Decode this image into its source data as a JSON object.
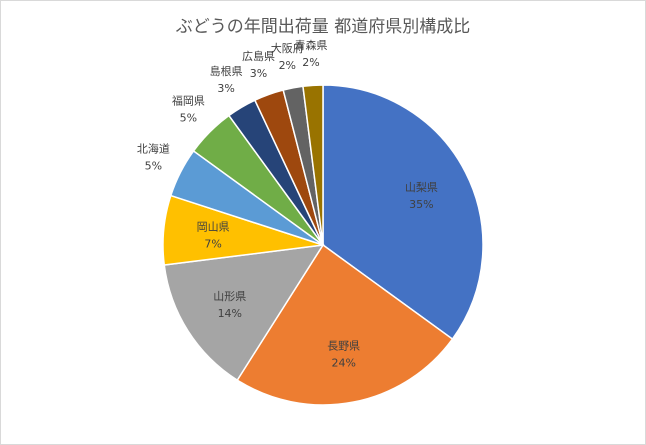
{
  "chart_data": {
    "type": "pie",
    "title": "ぶどうの年間出荷量 都道府県別構成比",
    "start_angle_deg": 0,
    "direction": "clockwise",
    "slices": [
      {
        "label": "山梨県",
        "value": 35,
        "value_label": "35%",
        "color": "#4472C4",
        "label_placement": "inside"
      },
      {
        "label": "長野県",
        "value": 24,
        "value_label": "24%",
        "color": "#ED7D31",
        "label_placement": "inside"
      },
      {
        "label": "山形県",
        "value": 14,
        "value_label": "14%",
        "color": "#A5A5A5",
        "label_placement": "inside"
      },
      {
        "label": "岡山県",
        "value": 7,
        "value_label": "7%",
        "color": "#FFC000",
        "label_placement": "inside"
      },
      {
        "label": "北海道",
        "value": 5,
        "value_label": "5%",
        "color": "#5B9BD5",
        "label_placement": "outside"
      },
      {
        "label": "福岡県",
        "value": 5,
        "value_label": "5%",
        "color": "#70AD47",
        "label_placement": "outside"
      },
      {
        "label": "島根県",
        "value": 3,
        "value_label": "3%",
        "color": "#264478",
        "label_placement": "outside"
      },
      {
        "label": "広島県",
        "value": 3,
        "value_label": "3%",
        "color": "#9E480E",
        "label_placement": "outside"
      },
      {
        "label": "大阪府",
        "value": 2,
        "value_label": "2%",
        "color": "#636363",
        "label_placement": "outside"
      },
      {
        "label": "青森県",
        "value": 2,
        "value_label": "2%",
        "color": "#997300",
        "label_placement": "outside"
      }
    ]
  }
}
